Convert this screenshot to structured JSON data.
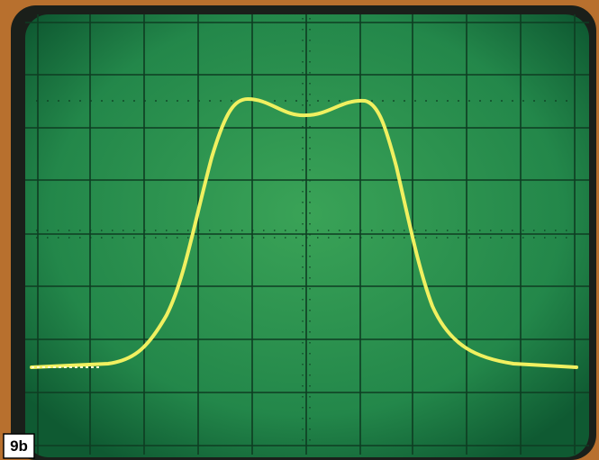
{
  "figure": {
    "label": "9b"
  }
}
